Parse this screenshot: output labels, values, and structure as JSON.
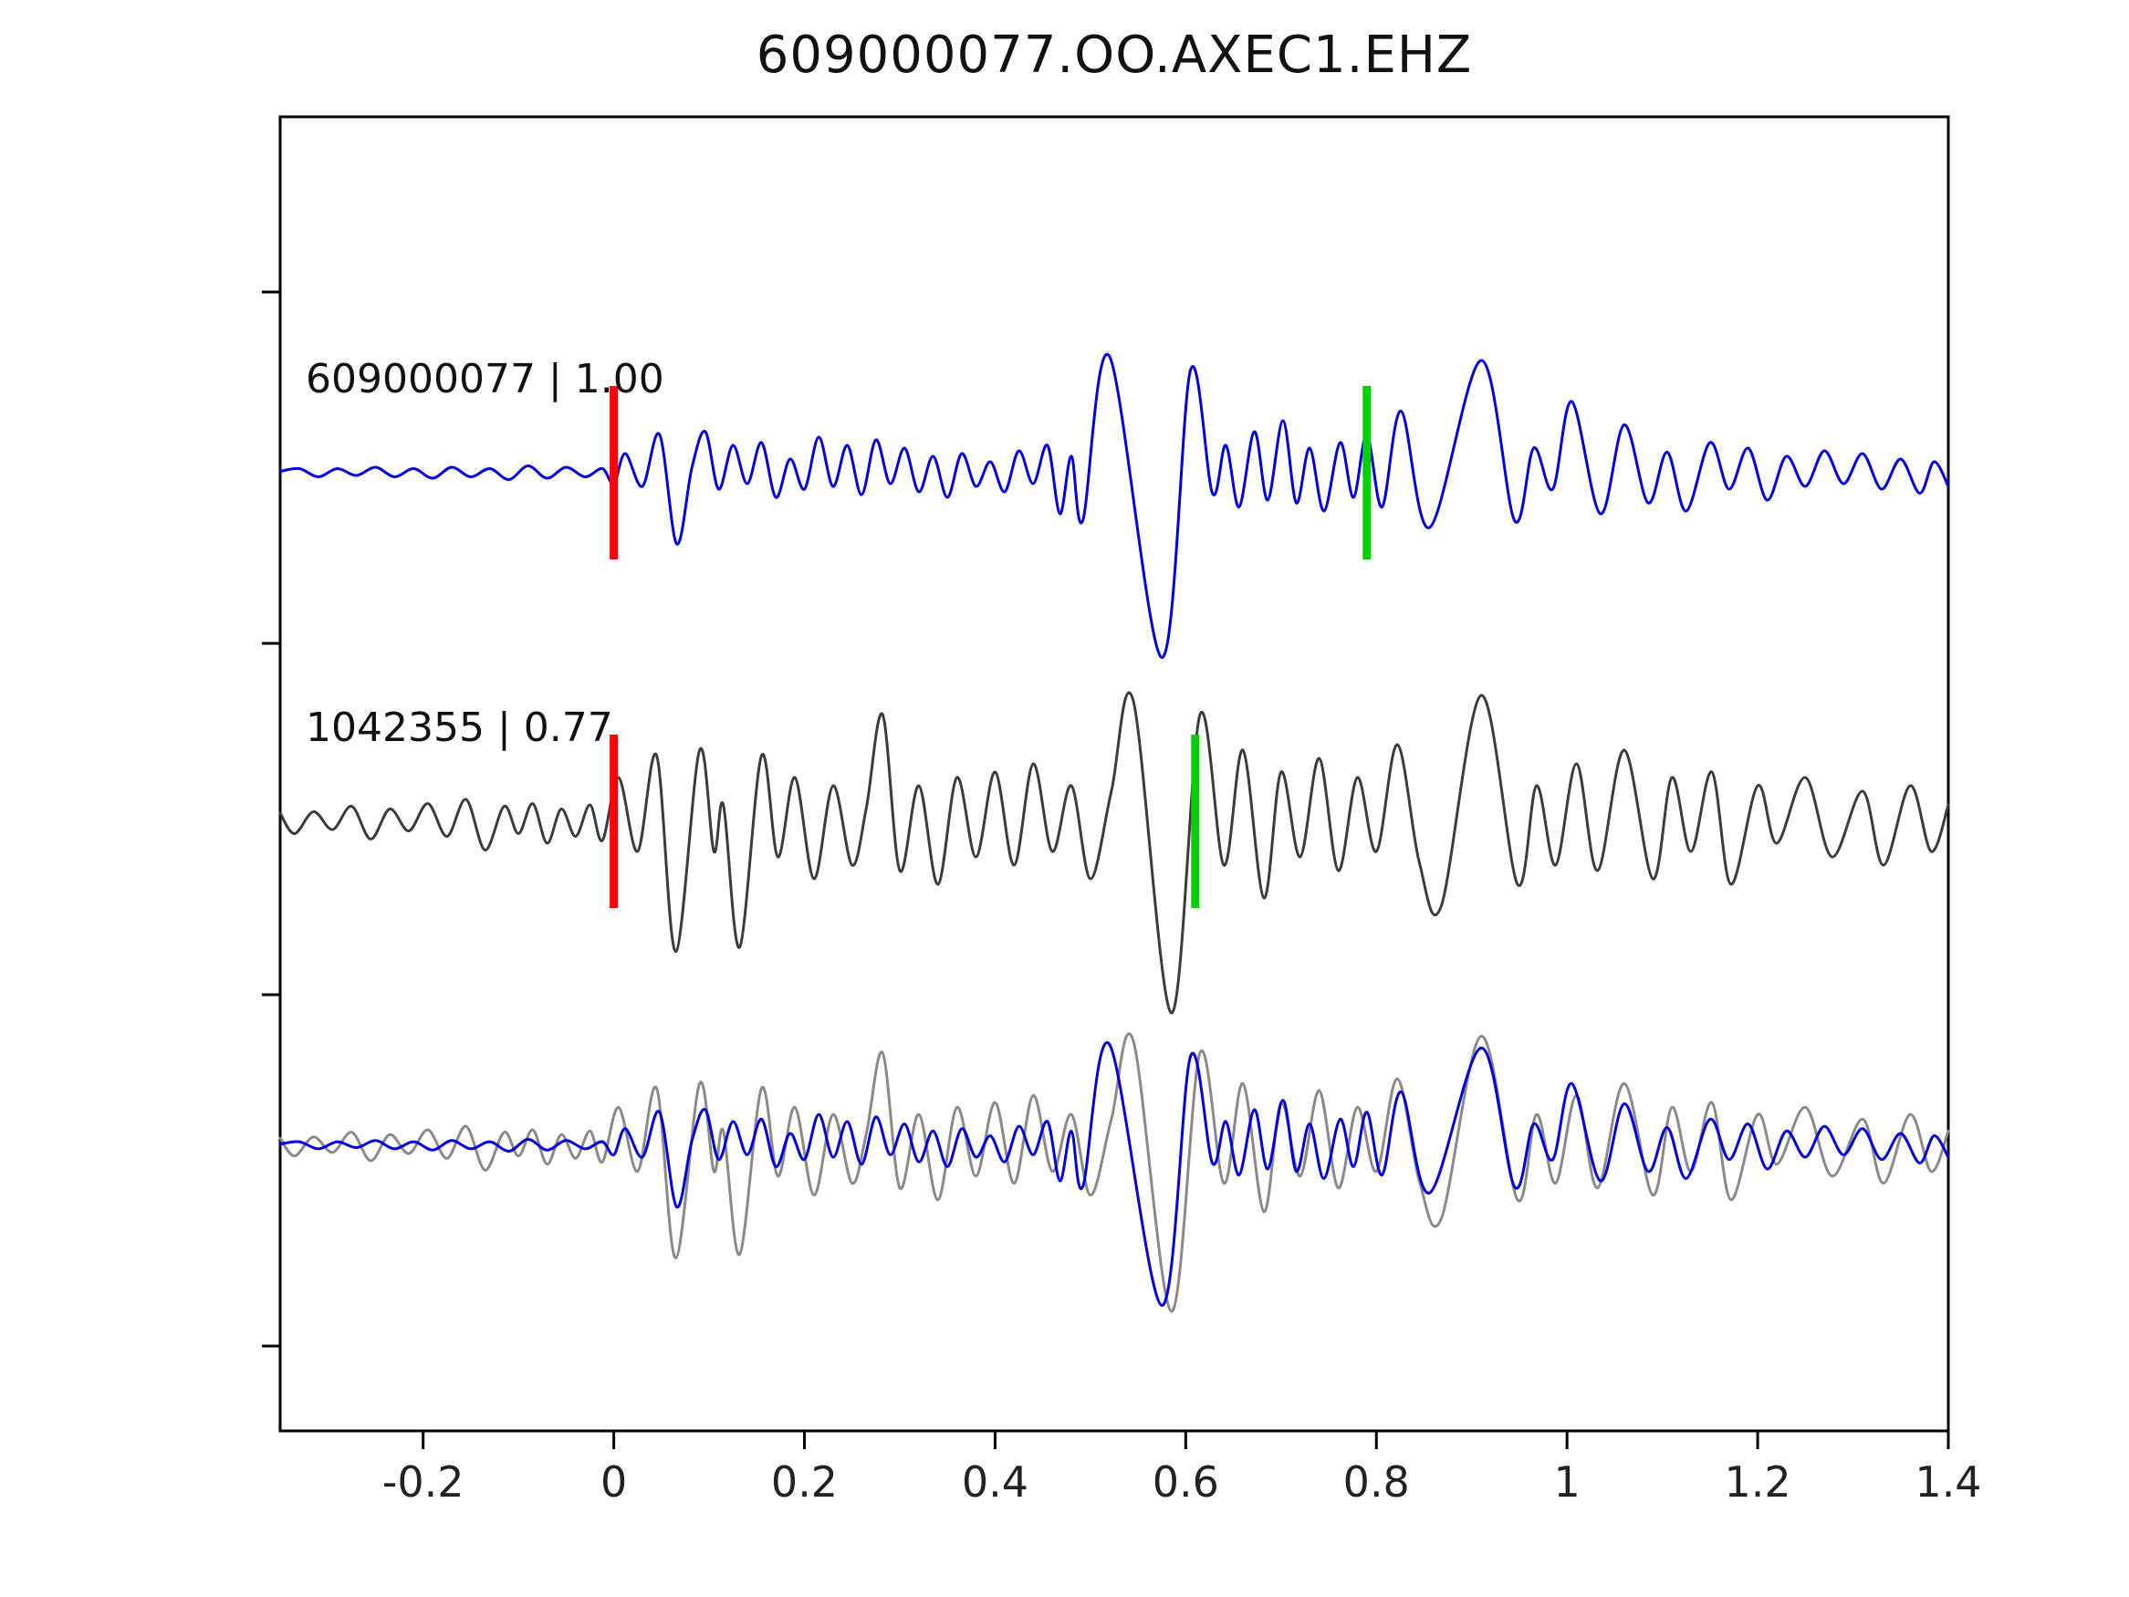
{
  "title": "609000077.OO.AXEC1.EHZ",
  "chart_data": {
    "type": "line",
    "title": "609000077.OO.AXEC1.EHZ",
    "subtitle": "",
    "grid": false,
    "legend": null,
    "y_unit": "normalized amplitude (traces offset per panel)",
    "x_axis": {
      "min": -0.35,
      "max": 1.4,
      "ticks": [
        -0.2,
        0,
        0.2,
        0.4,
        0.6,
        0.8,
        1,
        1.2,
        1.4
      ],
      "tick_labels": [
        "-0.2",
        "0",
        "0.2",
        "0.4",
        "0.6",
        "0.8",
        "1",
        "1.2",
        "1.4"
      ]
    },
    "colors": {
      "trace_template": "#0000e0",
      "trace_detection": "#3c3c3c",
      "overlay_detection": "#8a8a8a",
      "pick_marker": "#ff0000",
      "assoc_marker": "#00d000",
      "axis": "#000000"
    },
    "traces": [
      {
        "name": "trace-609000077",
        "label": "609000077 | 1.00",
        "event_id": "609000077",
        "correlation": "1.00",
        "color": "#0000e0",
        "pick_marker": {
          "x": 0.0,
          "color": "#ff0000"
        },
        "assoc_marker": {
          "x": 0.79,
          "color": "#00d000"
        },
        "points": [
          [
            -0.35,
            1
          ],
          [
            -0.33,
            3
          ],
          [
            -0.31,
            -3
          ],
          [
            -0.29,
            3
          ],
          [
            -0.27,
            -2
          ],
          [
            -0.25,
            4
          ],
          [
            -0.23,
            -3
          ],
          [
            -0.21,
            3
          ],
          [
            -0.19,
            -4
          ],
          [
            -0.17,
            4
          ],
          [
            -0.15,
            -3
          ],
          [
            -0.13,
            3
          ],
          [
            -0.11,
            -5
          ],
          [
            -0.09,
            5
          ],
          [
            -0.07,
            -4
          ],
          [
            -0.05,
            4
          ],
          [
            -0.03,
            -3
          ],
          [
            -0.012,
            3
          ],
          [
            0.0,
            -8
          ],
          [
            0.012,
            14
          ],
          [
            0.03,
            -10
          ],
          [
            0.048,
            28
          ],
          [
            0.066,
            -52
          ],
          [
            0.082,
            4
          ],
          [
            0.096,
            30
          ],
          [
            0.11,
            -12
          ],
          [
            0.125,
            20
          ],
          [
            0.14,
            -8
          ],
          [
            0.155,
            22
          ],
          [
            0.17,
            -18
          ],
          [
            0.185,
            10
          ],
          [
            0.2,
            -12
          ],
          [
            0.215,
            26
          ],
          [
            0.23,
            -10
          ],
          [
            0.245,
            20
          ],
          [
            0.26,
            -16
          ],
          [
            0.275,
            24
          ],
          [
            0.29,
            -8
          ],
          [
            0.305,
            18
          ],
          [
            0.32,
            -14
          ],
          [
            0.335,
            12
          ],
          [
            0.35,
            -18
          ],
          [
            0.365,
            14
          ],
          [
            0.38,
            -10
          ],
          [
            0.395,
            8
          ],
          [
            0.41,
            -14
          ],
          [
            0.425,
            16
          ],
          [
            0.44,
            -8
          ],
          [
            0.455,
            20
          ],
          [
            0.468,
            -30
          ],
          [
            0.48,
            12
          ],
          [
            0.492,
            -35
          ],
          [
            0.52,
            85
          ],
          [
            0.575,
            -135
          ],
          [
            0.605,
            75
          ],
          [
            0.628,
            -15
          ],
          [
            0.642,
            20
          ],
          [
            0.656,
            -25
          ],
          [
            0.672,
            30
          ],
          [
            0.686,
            -20
          ],
          [
            0.702,
            38
          ],
          [
            0.716,
            -22
          ],
          [
            0.73,
            18
          ],
          [
            0.745,
            -28
          ],
          [
            0.762,
            22
          ],
          [
            0.776,
            -18
          ],
          [
            0.79,
            28
          ],
          [
            0.806,
            -25
          ],
          [
            0.826,
            45
          ],
          [
            0.856,
            -40
          ],
          [
            0.91,
            82
          ],
          [
            0.945,
            -35
          ],
          [
            0.965,
            18
          ],
          [
            0.985,
            -12
          ],
          [
            1.005,
            52
          ],
          [
            1.035,
            -30
          ],
          [
            1.06,
            35
          ],
          [
            1.085,
            -22
          ],
          [
            1.105,
            15
          ],
          [
            1.125,
            -28
          ],
          [
            1.15,
            22
          ],
          [
            1.17,
            -12
          ],
          [
            1.19,
            18
          ],
          [
            1.21,
            -20
          ],
          [
            1.23,
            12
          ],
          [
            1.25,
            -10
          ],
          [
            1.27,
            16
          ],
          [
            1.29,
            -8
          ],
          [
            1.31,
            14
          ],
          [
            1.33,
            -12
          ],
          [
            1.35,
            10
          ],
          [
            1.37,
            -15
          ],
          [
            1.385,
            8
          ],
          [
            1.4,
            -10
          ]
        ]
      },
      {
        "name": "trace-1042355",
        "label": "1042355 | 0.77",
        "event_id": "1042355",
        "correlation": "0.77",
        "color": "#3c3c3c",
        "pick_marker": {
          "x": 0.0,
          "color": "#ff0000"
        },
        "assoc_marker": {
          "x": 0.61,
          "color": "#00d000"
        },
        "points": [
          [
            -0.35,
            6
          ],
          [
            -0.335,
            -9
          ],
          [
            -0.315,
            7
          ],
          [
            -0.295,
            -6
          ],
          [
            -0.275,
            11
          ],
          [
            -0.255,
            -13
          ],
          [
            -0.235,
            9
          ],
          [
            -0.215,
            -7
          ],
          [
            -0.195,
            13
          ],
          [
            -0.175,
            -11
          ],
          [
            -0.155,
            16
          ],
          [
            -0.135,
            -21
          ],
          [
            -0.115,
            11
          ],
          [
            -0.1,
            -9
          ],
          [
            -0.085,
            13
          ],
          [
            -0.07,
            -16
          ],
          [
            -0.055,
            9
          ],
          [
            -0.04,
            -11
          ],
          [
            -0.025,
            12
          ],
          [
            -0.012,
            -14
          ],
          [
            0.005,
            32
          ],
          [
            0.025,
            -22
          ],
          [
            0.045,
            48
          ],
          [
            0.065,
            -95
          ],
          [
            0.09,
            52
          ],
          [
            0.105,
            -22
          ],
          [
            0.115,
            12
          ],
          [
            0.132,
            -92
          ],
          [
            0.155,
            48
          ],
          [
            0.172,
            -26
          ],
          [
            0.19,
            32
          ],
          [
            0.21,
            -42
          ],
          [
            0.23,
            26
          ],
          [
            0.25,
            -32
          ],
          [
            0.265,
            10
          ],
          [
            0.282,
            78
          ],
          [
            0.3,
            -36
          ],
          [
            0.32,
            26
          ],
          [
            0.34,
            -46
          ],
          [
            0.36,
            32
          ],
          [
            0.38,
            -26
          ],
          [
            0.4,
            36
          ],
          [
            0.42,
            -32
          ],
          [
            0.44,
            42
          ],
          [
            0.46,
            -22
          ],
          [
            0.48,
            26
          ],
          [
            0.5,
            -42
          ],
          [
            0.522,
            22
          ],
          [
            0.545,
            88
          ],
          [
            0.585,
            -140
          ],
          [
            0.615,
            78
          ],
          [
            0.64,
            -32
          ],
          [
            0.66,
            52
          ],
          [
            0.682,
            -56
          ],
          [
            0.7,
            36
          ],
          [
            0.72,
            -26
          ],
          [
            0.74,
            46
          ],
          [
            0.76,
            -36
          ],
          [
            0.78,
            32
          ],
          [
            0.8,
            -22
          ],
          [
            0.822,
            56
          ],
          [
            0.845,
            -30
          ],
          [
            0.868,
            -62
          ],
          [
            0.91,
            92
          ],
          [
            0.948,
            -46
          ],
          [
            0.968,
            26
          ],
          [
            0.988,
            -32
          ],
          [
            1.01,
            42
          ],
          [
            1.032,
            -36
          ],
          [
            1.06,
            52
          ],
          [
            1.09,
            -42
          ],
          [
            1.11,
            32
          ],
          [
            1.13,
            -22
          ],
          [
            1.152,
            36
          ],
          [
            1.172,
            -46
          ],
          [
            1.2,
            26
          ],
          [
            1.22,
            -16
          ],
          [
            1.25,
            32
          ],
          [
            1.278,
            -26
          ],
          [
            1.31,
            22
          ],
          [
            1.332,
            -32
          ],
          [
            1.36,
            26
          ],
          [
            1.382,
            -22
          ],
          [
            1.4,
            12
          ]
        ]
      }
    ],
    "overlay_panel": {
      "description": "bottom panel overlays both traces aligned",
      "series": [
        {
          "trace_index": 1,
          "color": "#8a8a8a"
        },
        {
          "trace_index": 0,
          "color": "#0000e0"
        }
      ]
    }
  }
}
